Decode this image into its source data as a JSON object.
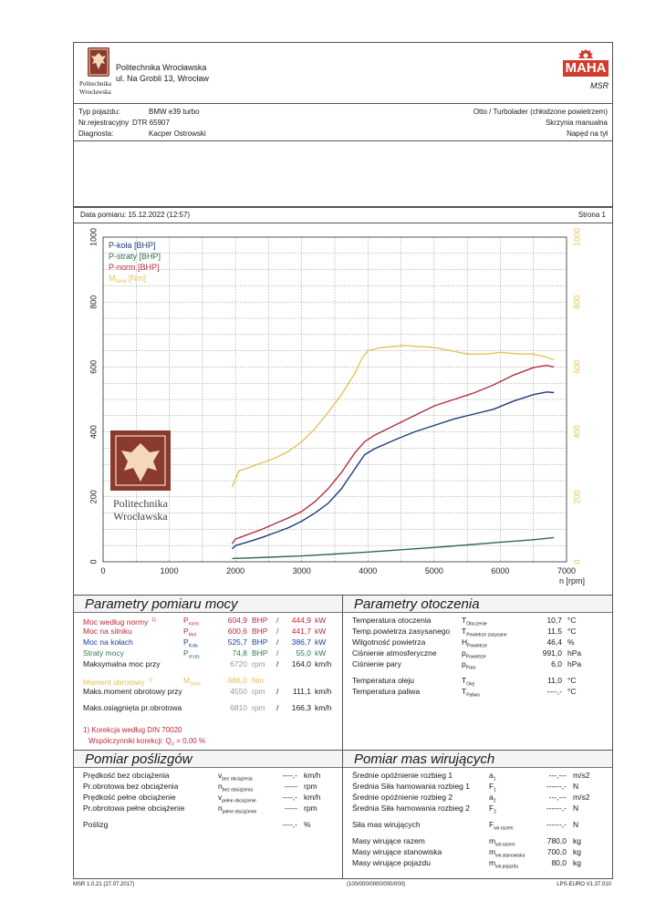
{
  "header": {
    "institution": "Politechnika Wrocławska",
    "address": "ul. Na Grobli 13, Wrocław",
    "logo_small_text_1": "Politechnika",
    "logo_small_text_2": "Wrocławska",
    "maha_logo": "MAHA",
    "maha_sub": "MSR"
  },
  "vehicle": {
    "type_label": "Typ pojazdu:",
    "type_value": "BMW e39 turbo",
    "reg_label": "Nr.rejestracyjny",
    "reg_value": "DTR  65907",
    "diag_label": "Diagnosta:",
    "diag_value": "Kacper Ostrowski",
    "engine": "Otto / Turbolader (chłodzone powietrzem)",
    "gearbox": "Skrzynia manualna",
    "drive": "Napęd na tył"
  },
  "meta": {
    "date": "Data pomiaru: 15.12.2022 (12:57)",
    "page": "Strona 1"
  },
  "chart_data": {
    "type": "line",
    "xlabel": "n [rpm]",
    "xlim": [
      0,
      7000
    ],
    "ylim_left": [
      0,
      1000
    ],
    "ylim_right": [
      0,
      1000
    ],
    "x_ticks": [
      "0",
      "1000",
      "2000",
      "3000",
      "4000",
      "5000",
      "6000",
      "7000"
    ],
    "y_ticks_left": [
      "0",
      "200",
      "400",
      "600",
      "800",
      "1000"
    ],
    "y_ticks_right": [
      "0",
      "200",
      "400",
      "600",
      "800",
      "1000"
    ],
    "legend_placement": "top-left",
    "legend": [
      "P-koła [BHP]",
      "P-straty [BHP]",
      "P-norm [BHP]",
      "M"
    ],
    "legend_m_sub": "Silnik",
    "legend_m_unit": "[Nm]",
    "watermark_1": "Politechnika",
    "watermark_2": "Wrocławska",
    "series": [
      {
        "name": "P-koła [BHP]",
        "color": "#1f3a7a",
        "axis": "left",
        "x": [
          1950,
          2000,
          2200,
          2400,
          2600,
          2800,
          3000,
          3200,
          3400,
          3600,
          3800,
          3950,
          4100,
          4400,
          4700,
          5000,
          5300,
          5600,
          5900,
          6200,
          6500,
          6700,
          6810
        ],
        "y": [
          40,
          50,
          62,
          75,
          90,
          105,
          125,
          150,
          180,
          225,
          285,
          330,
          348,
          375,
          400,
          420,
          440,
          455,
          470,
          495,
          515,
          523,
          521
        ]
      },
      {
        "name": "P-straty [BHP]",
        "color": "#2e6b4f",
        "axis": "left",
        "x": [
          1950,
          2500,
          3000,
          3500,
          4000,
          4500,
          5000,
          5500,
          6000,
          6500,
          6810
        ],
        "y": [
          10,
          14,
          18,
          24,
          30,
          37,
          44,
          52,
          60,
          68,
          74.8
        ]
      },
      {
        "name": "P-norm [BHP]",
        "color": "#b03040",
        "axis": "left",
        "x": [
          1950,
          2000,
          2200,
          2400,
          2600,
          2800,
          3000,
          3200,
          3400,
          3600,
          3800,
          3950,
          4100,
          4400,
          4700,
          5000,
          5300,
          5600,
          5900,
          6200,
          6500,
          6700,
          6810
        ],
        "y": [
          55,
          70,
          85,
          100,
          118,
          135,
          155,
          185,
          225,
          275,
          335,
          370,
          390,
          420,
          450,
          480,
          500,
          520,
          545,
          575,
          598,
          605,
          600
        ]
      },
      {
        "name": "M",
        "color": "#e6c35a",
        "axis": "right",
        "x": [
          1950,
          2050,
          2200,
          2400,
          2600,
          2800,
          3000,
          3200,
          3400,
          3600,
          3800,
          3920,
          4000,
          4200,
          4550,
          5000,
          5500,
          5800,
          6000,
          6300,
          6500,
          6700,
          6810
        ],
        "y": [
          230,
          280,
          290,
          305,
          320,
          340,
          370,
          410,
          460,
          515,
          580,
          630,
          650,
          660,
          666,
          660,
          640,
          640,
          645,
          640,
          640,
          630,
          622
        ]
      }
    ]
  },
  "power": {
    "title": "Parametry pomiaru mocy",
    "rows": [
      {
        "label": "Moc według normy",
        "sup": "1)",
        "sym": "P",
        "sub": "norm",
        "v1": "604,9",
        "u1": "BHP",
        "sep": "/",
        "v2": "444,9",
        "u2": "kW",
        "color": "#c0283a"
      },
      {
        "label": "Moc na silniku",
        "sup": "",
        "sym": "P",
        "sub": "Mot",
        "v1": "600,6",
        "u1": "BHP",
        "sep": "/",
        "v2": "441,7",
        "u2": "kW",
        "color": "#c0283a"
      },
      {
        "label": "Moc na kołach",
        "sup": "",
        "sym": "P",
        "sub": "Koła",
        "v1": "525,7",
        "u1": "BHP",
        "sep": "/",
        "v2": "386,7",
        "u2": "kW",
        "color": "#1f3a9a"
      },
      {
        "label": "Straty mocy",
        "sup": "",
        "sym": "P",
        "sub": "straty",
        "v1": "74,8",
        "u1": "BHP",
        "sep": "/",
        "v2": "55,0",
        "u2": "kW",
        "color": "#2e7a55"
      },
      {
        "label": "Maksymalna moc przy",
        "sup": "",
        "sym": "",
        "sub": "",
        "v1": "6720",
        "u1": "rpm",
        "sep": "/",
        "v2": "164,0",
        "u2": "km/h",
        "color": "#1a1a1a"
      },
      {
        "label": "Moment obrotowy",
        "sup": "1)",
        "sym": "M",
        "sub": "Silnik",
        "v1": "666,0",
        "u1": "Nm",
        "sep": "",
        "v2": "",
        "u2": "",
        "color": "#e0c050"
      },
      {
        "label": "Maks.moment obrotowy przy",
        "sup": "",
        "sym": "",
        "sub": "",
        "v1": "4550",
        "u1": "rpm",
        "sep": "/",
        "v2": "111,1",
        "u2": "km/h",
        "color": "#1a1a1a"
      },
      {
        "label": "Maks.osiągnięta pr.obrotowa",
        "sup": "",
        "sym": "",
        "sub": "",
        "v1": "6810",
        "u1": "rpm",
        "sep": "/",
        "v2": "166,3",
        "u2": "km/h",
        "color": "#1a1a1a"
      }
    ],
    "note1": "1) Korekcja według DIN 70020",
    "note2_prefix": "Współczynniki korekcji: Q",
    "note2_sub": "V",
    "note2_suffix": " =   0,00 %"
  },
  "ambient": {
    "title": "Parametry otoczenia",
    "rows": [
      {
        "label": "Temperatura otoczenia",
        "sym": "T",
        "sub": "Otoczenie",
        "val": "10,7",
        "unit": "°C"
      },
      {
        "label": "Temp.powietrza zasysanego",
        "sym": "T",
        "sub": "Powietrze zasysane",
        "val": "11,5",
        "unit": "°C"
      },
      {
        "label": "Wilgotność powietrza",
        "sym": "H",
        "sub": "Powietrze",
        "val": "46,4",
        "unit": "%"
      },
      {
        "label": "Ciśnienie atmosferyczne",
        "sym": "p",
        "sub": "Powietrze",
        "val": "991,0",
        "unit": "hPa"
      },
      {
        "label": "Ciśnienie pary",
        "sym": "p",
        "sub": "Para",
        "val": "6,0",
        "unit": "hPa"
      },
      {
        "label": "Temperatura oleju",
        "sym": "T",
        "sub": "Olej",
        "val": "11,0",
        "unit": "°C"
      },
      {
        "label": "Temperatura paliwa",
        "sym": "T",
        "sub": "Paliwo",
        "val": "----,-",
        "unit": "°C"
      }
    ]
  },
  "slip": {
    "title": "Pomiar poślizgów",
    "rows": [
      {
        "label": "Prędkość bez obciążenia",
        "sym": "v",
        "sub": "bez obciążenia",
        "val": "----,-",
        "unit": "km/h"
      },
      {
        "label": "Pr.obrotowa bez obciążenia",
        "sym": "n",
        "sub": "bez obciążenia",
        "val": "-----",
        "unit": "rpm"
      },
      {
        "label": "Prędkość pełne obciążenie",
        "sym": "v",
        "sub": "pełne obciążenie",
        "val": "----,-",
        "unit": "km/h"
      },
      {
        "label": "Pr.obrotowa pełne obciążenie",
        "sym": "n",
        "sub": "pełne obciążenie",
        "val": "-----",
        "unit": "rpm"
      },
      {
        "label": "Poślizg",
        "sym": "",
        "sub": "",
        "val": "----,-",
        "unit": "%"
      }
    ]
  },
  "masses": {
    "title": "Pomiar mas wirujących",
    "rows": [
      {
        "label": "Średnie opóźnienie rozbieg 1",
        "sym": "a",
        "sub": "1",
        "val": "---,---",
        "unit": "m/s2"
      },
      {
        "label": "Średnia Siła hamowania rozbieg 1",
        "sym": "F",
        "sub": "1",
        "val": "------,-",
        "unit": "N"
      },
      {
        "label": "Średnie opóźnienie rozbieg 2",
        "sym": "a",
        "sub": "2",
        "val": "---,---",
        "unit": "m/s2"
      },
      {
        "label": "Średnia Siła hamowania rozbieg 2",
        "sym": "F",
        "sub": "2",
        "val": "------,-",
        "unit": "N"
      },
      {
        "label": "Siła mas wirujących",
        "sym": "F",
        "sub": "wir.razem",
        "val": "------,-",
        "unit": "N"
      },
      {
        "label": "Masy wirujące razem",
        "sym": "m",
        "sub": "wir.razem",
        "val": "780,0",
        "unit": "kg"
      },
      {
        "label": "Masy wirujące stanowiska",
        "sym": "m",
        "sub": "wir.stanowiska",
        "val": "700,0",
        "unit": "kg"
      },
      {
        "label": "Masy wirujące pojazdu",
        "sym": "m",
        "sub": "wir.pojazdu",
        "val": "80,0",
        "unit": "kg"
      }
    ]
  },
  "footer": {
    "left": "MSR 1.0.21 (27.07.2017)",
    "center": "(100/000/0000/000/000)",
    "right": "LPS-EURO V1.37.010"
  }
}
